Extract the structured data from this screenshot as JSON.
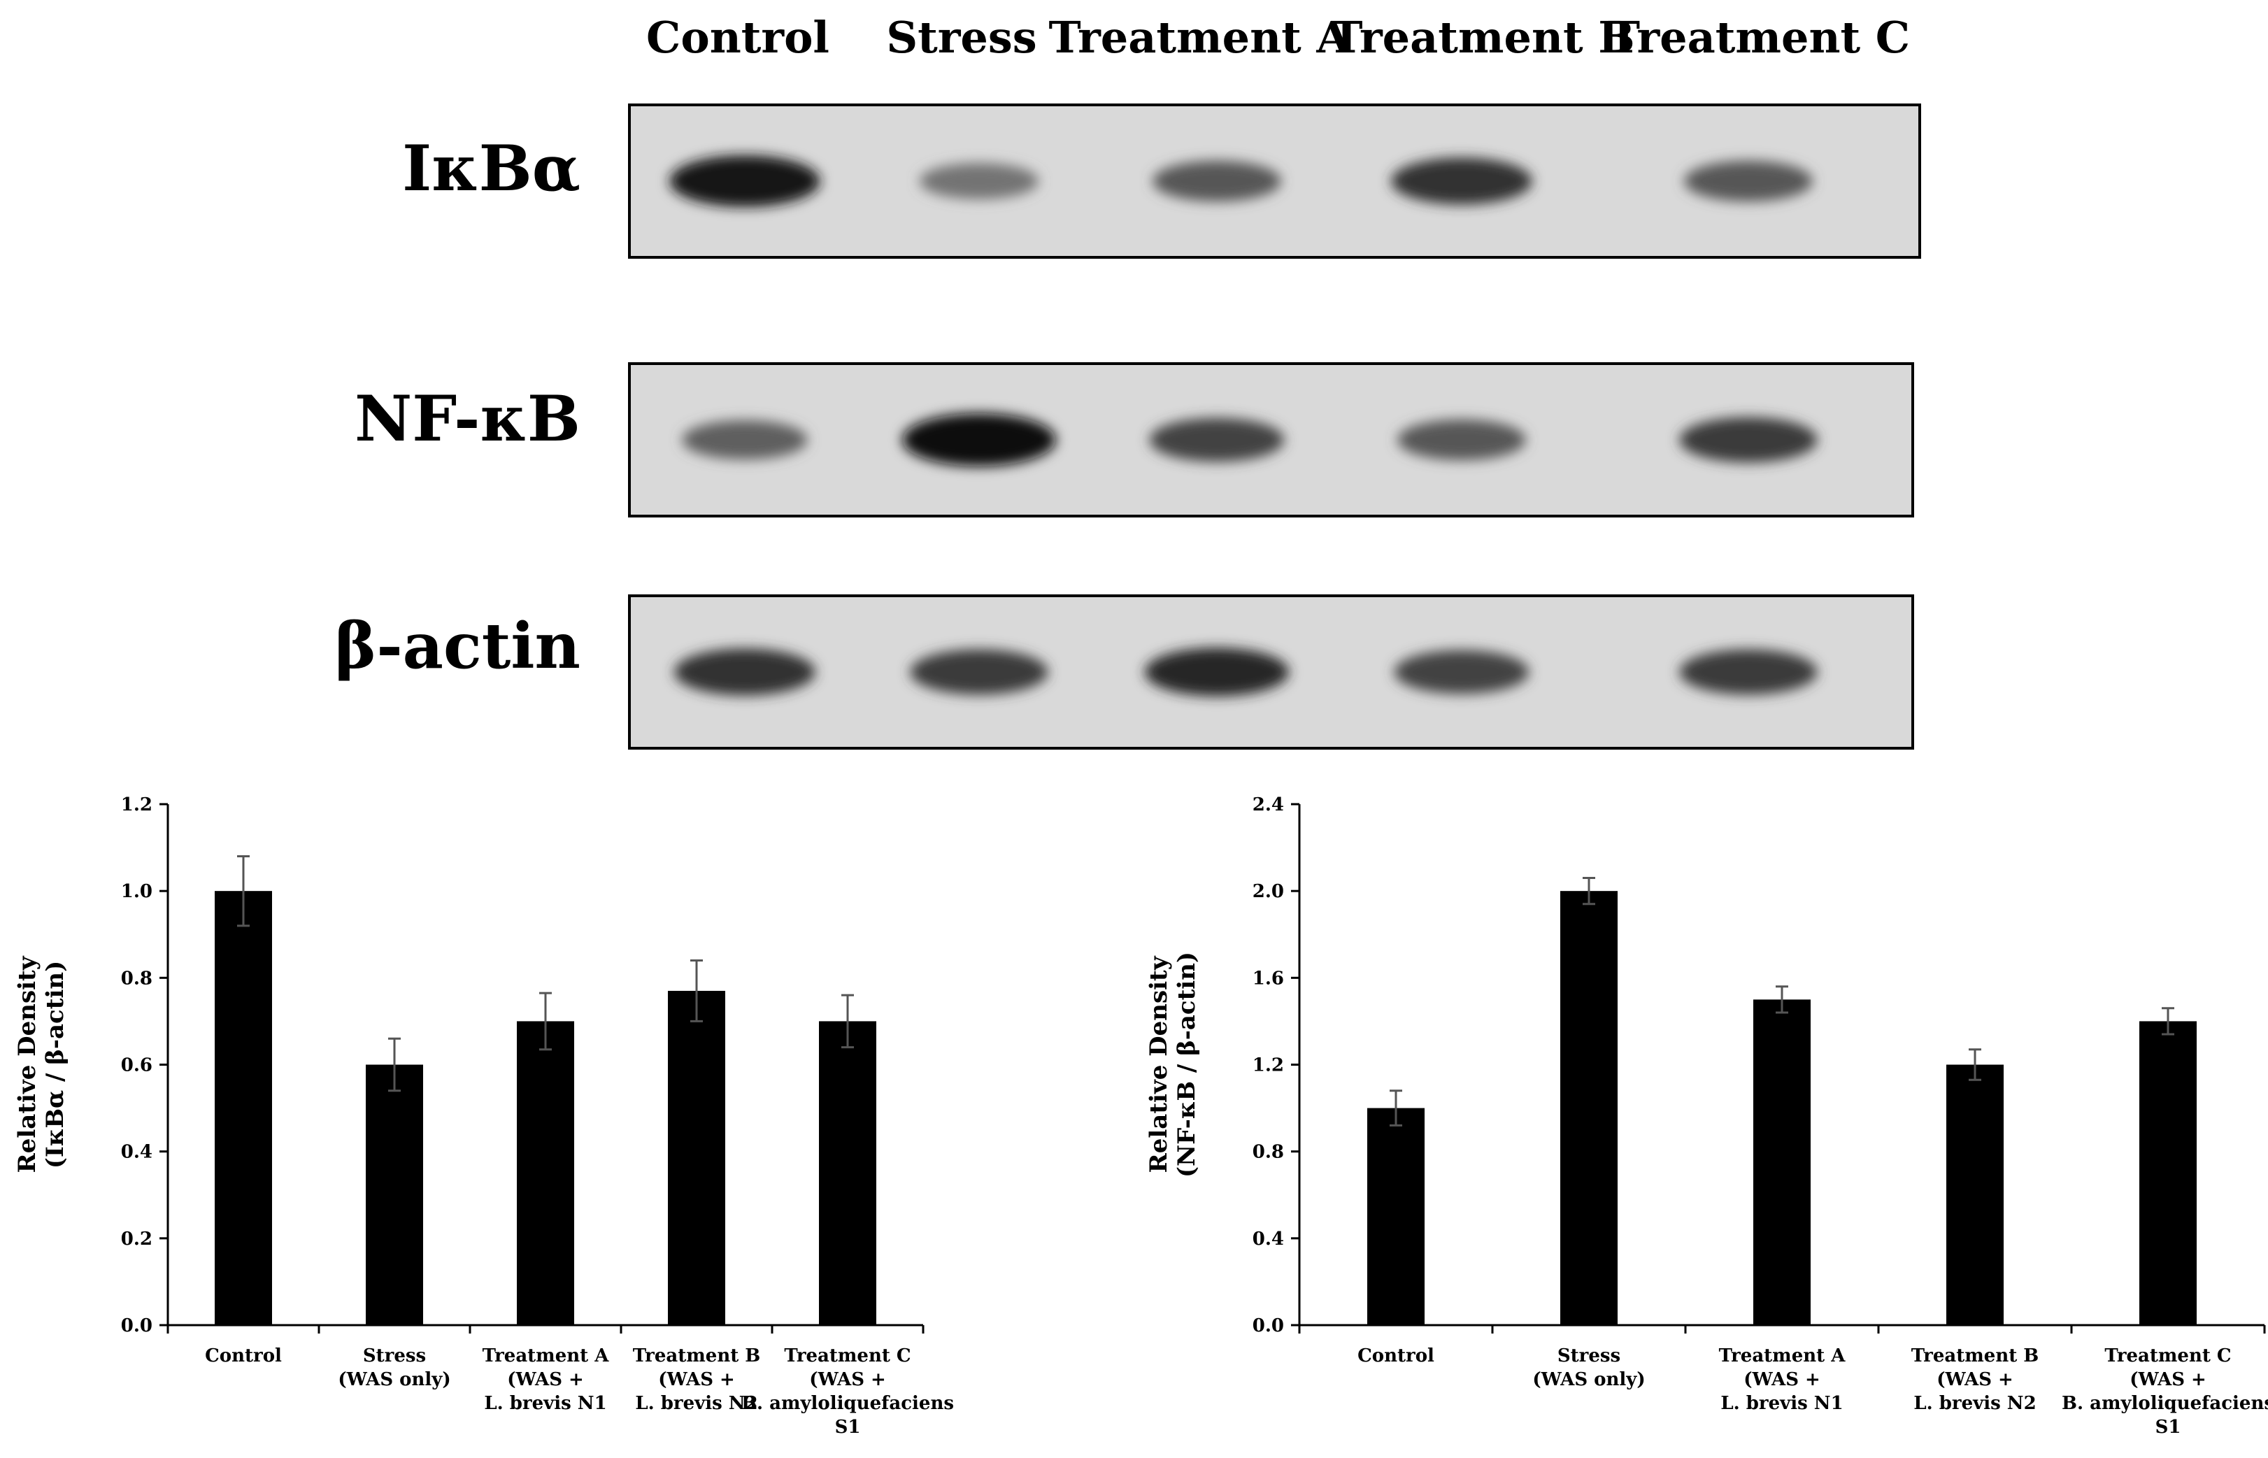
{
  "blot": {
    "lanes": [
      "Control",
      "Stress",
      "Treatment A",
      "Treatment B",
      "Treatment C"
    ],
    "rows": [
      {
        "label": "IκBα",
        "band_intensity": [
          0.95,
          0.45,
          0.6,
          0.8,
          0.6
        ]
      },
      {
        "label": "NF-κB",
        "band_intensity": [
          0.55,
          1.0,
          0.7,
          0.6,
          0.75
        ]
      },
      {
        "label": "β-actin",
        "band_intensity": [
          0.8,
          0.75,
          0.85,
          0.7,
          0.75
        ]
      }
    ]
  },
  "chart_data": [
    {
      "type": "bar",
      "categories": [
        [
          "Control"
        ],
        [
          "Stress",
          "(WAS only)"
        ],
        [
          "Treatment A",
          "(WAS +",
          "L. brevis N1"
        ],
        [
          "Treatment B",
          "(WAS +",
          "L. brevis N2"
        ],
        [
          "Treatment C",
          "(WAS +",
          "B. amyloliquefaciens",
          "S1"
        ]
      ],
      "values": [
        1.0,
        0.6,
        0.7,
        0.77,
        0.7
      ],
      "errors": [
        0.08,
        0.06,
        0.065,
        0.07,
        0.06
      ],
      "ylabel": [
        "Relative Density",
        "(IκBα / β-actin)"
      ],
      "ylim": [
        0,
        1.2
      ],
      "yticks": [
        "0.0",
        "0.2",
        "0.4",
        "0.6",
        "0.8",
        "1.0",
        "1.2"
      ],
      "title": "",
      "xlabel": "",
      "grid": false
    },
    {
      "type": "bar",
      "categories": [
        [
          "Control"
        ],
        [
          "Stress",
          "(WAS only)"
        ],
        [
          "Treatment A",
          "(WAS +",
          "L. brevis N1"
        ],
        [
          "Treatment B",
          "(WAS +",
          "L. brevis N2"
        ],
        [
          "Treatment C",
          "(WAS +",
          "B. amyloliquefaciens",
          "S1"
        ]
      ],
      "values": [
        1.0,
        2.0,
        1.5,
        1.2,
        1.4
      ],
      "errors": [
        0.08,
        0.06,
        0.06,
        0.07,
        0.06
      ],
      "ylabel": [
        "Relative Density",
        "(NF-κB / β-actin)"
      ],
      "ylim": [
        0,
        2.4
      ],
      "yticks": [
        "0.0",
        "0.4",
        "0.8",
        "1.2",
        "1.6",
        "2.0",
        "2.4"
      ],
      "title": "",
      "xlabel": "",
      "grid": false
    }
  ]
}
